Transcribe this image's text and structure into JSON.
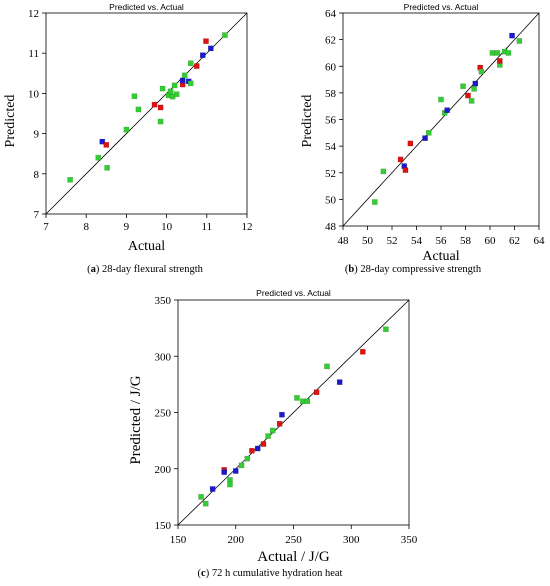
{
  "colors": {
    "green": "#33cc33",
    "red": "#dd1111",
    "blue": "#1a1acc",
    "axis": "#000000",
    "fit_line": "#000000"
  },
  "captions": [
    {
      "letter": "a",
      "text": " 28-day flexural strength"
    },
    {
      "letter": "b",
      "text": " 28-day compressive strength"
    },
    {
      "letter": "c",
      "text": " 72 h cumulative hydration heat"
    }
  ],
  "chart_data": [
    {
      "type": "scatter",
      "title": "Predicted vs. Actual",
      "xlabel": "Actual",
      "ylabel": "Predicted",
      "xlim": [
        7,
        12
      ],
      "ylim": [
        7,
        12
      ],
      "xticks": [
        7,
        8,
        9,
        10,
        11,
        12
      ],
      "yticks": [
        7,
        8,
        9,
        10,
        11,
        12
      ],
      "xtick_labels": [
        "7",
        "8",
        "9",
        "10",
        "11",
        "12"
      ],
      "ytick_labels": [
        "7",
        "8",
        "9",
        "10",
        "11",
        "12"
      ],
      "reference_line": [
        7,
        12
      ],
      "points": [
        {
          "x": 7.6,
          "y": 7.85,
          "c": "green"
        },
        {
          "x": 8.3,
          "y": 8.4,
          "c": "green"
        },
        {
          "x": 8.4,
          "y": 8.8,
          "c": "blue"
        },
        {
          "x": 8.5,
          "y": 8.72,
          "c": "red"
        },
        {
          "x": 8.52,
          "y": 8.15,
          "c": "green"
        },
        {
          "x": 9.0,
          "y": 9.1,
          "c": "green"
        },
        {
          "x": 9.2,
          "y": 9.93,
          "c": "green"
        },
        {
          "x": 9.3,
          "y": 9.6,
          "c": "green"
        },
        {
          "x": 9.7,
          "y": 9.72,
          "c": "red"
        },
        {
          "x": 9.85,
          "y": 9.65,
          "c": "red"
        },
        {
          "x": 9.85,
          "y": 9.3,
          "c": "green"
        },
        {
          "x": 9.9,
          "y": 10.12,
          "c": "green"
        },
        {
          "x": 10.05,
          "y": 9.95,
          "c": "green"
        },
        {
          "x": 10.1,
          "y": 10.05,
          "c": "green"
        },
        {
          "x": 10.15,
          "y": 9.92,
          "c": "green"
        },
        {
          "x": 10.2,
          "y": 10.2,
          "c": "green"
        },
        {
          "x": 10.25,
          "y": 9.98,
          "c": "green"
        },
        {
          "x": 10.4,
          "y": 10.22,
          "c": "red"
        },
        {
          "x": 10.4,
          "y": 10.32,
          "c": "blue"
        },
        {
          "x": 10.45,
          "y": 10.45,
          "c": "green"
        },
        {
          "x": 10.55,
          "y": 10.3,
          "c": "blue"
        },
        {
          "x": 10.6,
          "y": 10.25,
          "c": "green"
        },
        {
          "x": 10.6,
          "y": 10.75,
          "c": "green"
        },
        {
          "x": 10.75,
          "y": 10.68,
          "c": "red"
        },
        {
          "x": 10.9,
          "y": 10.95,
          "c": "blue"
        },
        {
          "x": 10.98,
          "y": 11.3,
          "c": "red"
        },
        {
          "x": 11.1,
          "y": 11.12,
          "c": "blue"
        },
        {
          "x": 11.45,
          "y": 11.45,
          "c": "green"
        }
      ]
    },
    {
      "type": "scatter",
      "title": "Predicted vs. Actual",
      "xlabel": "Actual",
      "ylabel": "Predicted",
      "xlim": [
        48,
        64
      ],
      "ylim": [
        48,
        64
      ],
      "xticks": [
        48,
        50,
        52,
        54,
        56,
        58,
        60,
        62,
        64
      ],
      "yticks": [
        48,
        50,
        52,
        54,
        56,
        58,
        60,
        62,
        64
      ],
      "xtick_labels": [
        "48",
        "50",
        "52",
        "54",
        "56",
        "58",
        "60",
        "62",
        "64"
      ],
      "ytick_labels": [
        "48",
        "50",
        "52",
        "54",
        "56",
        "58",
        "60",
        "62",
        "64"
      ],
      "reference_line": [
        48,
        64
      ],
      "points": [
        {
          "x": 50.6,
          "y": 49.8,
          "c": "green"
        },
        {
          "x": 51.3,
          "y": 52.1,
          "c": "green"
        },
        {
          "x": 52.7,
          "y": 53.0,
          "c": "red"
        },
        {
          "x": 53.0,
          "y": 52.5,
          "c": "blue"
        },
        {
          "x": 53.1,
          "y": 52.2,
          "c": "red"
        },
        {
          "x": 53.5,
          "y": 54.2,
          "c": "red"
        },
        {
          "x": 54.7,
          "y": 54.6,
          "c": "blue"
        },
        {
          "x": 55.0,
          "y": 55.0,
          "c": "green"
        },
        {
          "x": 56.0,
          "y": 57.5,
          "c": "green"
        },
        {
          "x": 56.3,
          "y": 56.5,
          "c": "green"
        },
        {
          "x": 56.5,
          "y": 56.7,
          "c": "blue"
        },
        {
          "x": 57.8,
          "y": 58.5,
          "c": "green"
        },
        {
          "x": 58.2,
          "y": 57.8,
          "c": "red"
        },
        {
          "x": 58.5,
          "y": 57.4,
          "c": "green"
        },
        {
          "x": 58.7,
          "y": 58.3,
          "c": "green"
        },
        {
          "x": 58.8,
          "y": 58.7,
          "c": "blue"
        },
        {
          "x": 59.2,
          "y": 59.9,
          "c": "red"
        },
        {
          "x": 59.3,
          "y": 59.6,
          "c": "green"
        },
        {
          "x": 60.2,
          "y": 61.0,
          "c": "green"
        },
        {
          "x": 60.6,
          "y": 61.0,
          "c": "green"
        },
        {
          "x": 60.8,
          "y": 60.1,
          "c": "green"
        },
        {
          "x": 60.8,
          "y": 60.4,
          "c": "red"
        },
        {
          "x": 61.2,
          "y": 61.1,
          "c": "green"
        },
        {
          "x": 61.5,
          "y": 61.0,
          "c": "green"
        },
        {
          "x": 61.8,
          "y": 62.3,
          "c": "blue"
        },
        {
          "x": 62.4,
          "y": 61.9,
          "c": "green"
        }
      ]
    },
    {
      "type": "scatter",
      "title": "Predicted vs. Actual",
      "xlabel": "Actual / J/G",
      "ylabel": "Predicted / J/G",
      "xlim": [
        150,
        350
      ],
      "ylim": [
        150,
        350
      ],
      "xticks": [
        150,
        200,
        250,
        300,
        350
      ],
      "yticks": [
        150,
        200,
        250,
        300,
        350
      ],
      "xtick_labels": [
        "150",
        "200",
        "250",
        "300",
        "350"
      ],
      "ytick_labels": [
        "150",
        "200",
        "250",
        "300",
        "350"
      ],
      "reference_line": [
        150,
        350
      ],
      "points": [
        {
          "x": 170,
          "y": 175,
          "c": "green"
        },
        {
          "x": 174,
          "y": 169,
          "c": "green"
        },
        {
          "x": 180,
          "y": 182,
          "c": "blue"
        },
        {
          "x": 190,
          "y": 199,
          "c": "red"
        },
        {
          "x": 190,
          "y": 197,
          "c": "blue"
        },
        {
          "x": 195,
          "y": 190,
          "c": "green"
        },
        {
          "x": 195,
          "y": 186,
          "c": "green"
        },
        {
          "x": 200,
          "y": 198,
          "c": "blue"
        },
        {
          "x": 205,
          "y": 203,
          "c": "green"
        },
        {
          "x": 210,
          "y": 209,
          "c": "green"
        },
        {
          "x": 214,
          "y": 216,
          "c": "red"
        },
        {
          "x": 219,
          "y": 218,
          "c": "blue"
        },
        {
          "x": 224,
          "y": 222,
          "c": "red"
        },
        {
          "x": 228,
          "y": 229,
          "c": "green"
        },
        {
          "x": 232,
          "y": 234,
          "c": "green"
        },
        {
          "x": 238,
          "y": 240,
          "c": "red"
        },
        {
          "x": 240,
          "y": 248,
          "c": "blue"
        },
        {
          "x": 253,
          "y": 263,
          "c": "green"
        },
        {
          "x": 258,
          "y": 260,
          "c": "green"
        },
        {
          "x": 262,
          "y": 260,
          "c": "green"
        },
        {
          "x": 270,
          "y": 268,
          "c": "red"
        },
        {
          "x": 279,
          "y": 291,
          "c": "green"
        },
        {
          "x": 290,
          "y": 277,
          "c": "blue"
        },
        {
          "x": 310,
          "y": 304,
          "c": "red"
        },
        {
          "x": 330,
          "y": 324,
          "c": "green"
        }
      ]
    }
  ]
}
